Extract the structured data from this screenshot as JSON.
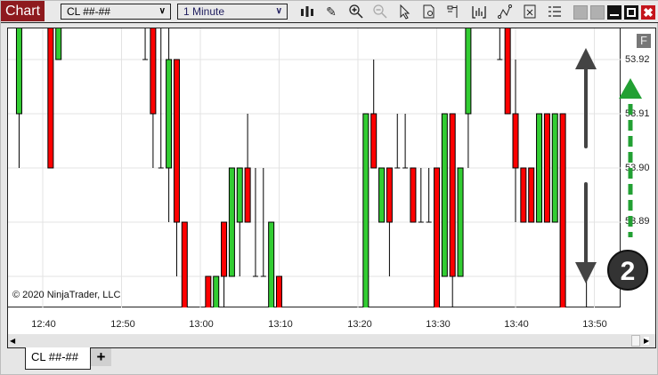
{
  "toolbar": {
    "brand": "Chart",
    "instrument": "CL ##-##",
    "interval": "1 Minute",
    "icons": [
      "bar-type-icon",
      "draw-pencil-icon",
      "zoom-in-icon",
      "zoom-out-icon",
      "pointer-icon",
      "data-box-icon",
      "properties-icon",
      "indicators-icon",
      "strategies-icon",
      "templates-icon",
      "list-icon"
    ]
  },
  "window": {
    "close_color": "#c4161c"
  },
  "chart": {
    "copyright": "© 2020 NinjaTrader, LLC",
    "f_button": "F",
    "badge": "2",
    "price_labels": [
      "53.92",
      "53.91",
      "53.90",
      "53.89"
    ],
    "time_labels": [
      "12:40",
      "12:50",
      "13:00",
      "13:10",
      "13:20",
      "13:30",
      "13:40",
      "13:50"
    ],
    "up_color": "#32cd32",
    "down_color": "#ff0000"
  },
  "chart_data": {
    "type": "candlestick",
    "x_label": "",
    "y_label": "",
    "ylim": [
      53.8744,
      53.9257
    ],
    "grid": true,
    "candles": [
      [
        "12:37",
        53.91,
        53.93,
        53.9,
        53.93
      ],
      [
        "12:41",
        53.93,
        53.93,
        53.9,
        53.9
      ],
      [
        "12:42",
        53.92,
        53.93,
        53.92,
        53.93
      ],
      [
        "12:53",
        53.92,
        53.93,
        53.92,
        53.92
      ],
      [
        "12:54",
        53.93,
        53.93,
        53.9,
        53.91
      ],
      [
        "12:55",
        53.9,
        53.93,
        53.9,
        53.9
      ],
      [
        "12:56",
        53.9,
        53.93,
        53.89,
        53.92
      ],
      [
        "12:57",
        53.92,
        53.92,
        53.88,
        53.89
      ],
      [
        "12:58",
        53.89,
        53.89,
        53.87,
        53.87
      ],
      [
        "13:01",
        53.88,
        53.88,
        53.87,
        53.87
      ],
      [
        "13:02",
        53.87,
        53.88,
        53.87,
        53.88
      ],
      [
        "13:03",
        53.89,
        53.89,
        53.87,
        53.88
      ],
      [
        "13:04",
        53.88,
        53.9,
        53.88,
        53.9
      ],
      [
        "13:05",
        53.89,
        53.9,
        53.88,
        53.9
      ],
      [
        "13:06",
        53.9,
        53.91,
        53.89,
        53.89
      ],
      [
        "13:07",
        53.88,
        53.9,
        53.88,
        53.88
      ],
      [
        "13:08",
        53.88,
        53.9,
        53.88,
        53.88
      ],
      [
        "13:09",
        53.87,
        53.89,
        53.87,
        53.89
      ],
      [
        "13:10",
        53.88,
        53.88,
        53.87,
        53.87
      ],
      [
        "13:21",
        53.87,
        53.91,
        53.87,
        53.91
      ],
      [
        "13:22",
        53.91,
        53.92,
        53.9,
        53.9
      ],
      [
        "13:23",
        53.89,
        53.9,
        53.89,
        53.9
      ],
      [
        "13:24",
        53.9,
        53.9,
        53.88,
        53.89
      ],
      [
        "13:25",
        53.9,
        53.91,
        53.9,
        53.9
      ],
      [
        "13:26",
        53.9,
        53.91,
        53.9,
        53.9
      ],
      [
        "13:27",
        53.9,
        53.9,
        53.89,
        53.89
      ],
      [
        "13:28",
        53.89,
        53.9,
        53.89,
        53.89
      ],
      [
        "13:29",
        53.89,
        53.9,
        53.89,
        53.89
      ],
      [
        "13:30",
        53.9,
        53.9,
        53.87,
        53.87
      ],
      [
        "13:31",
        53.88,
        53.91,
        53.88,
        53.91
      ],
      [
        "13:32",
        53.91,
        53.91,
        53.87,
        53.88
      ],
      [
        "13:33",
        53.88,
        53.9,
        53.88,
        53.9
      ],
      [
        "13:34",
        53.91,
        53.93,
        53.9,
        53.93
      ],
      [
        "13:38",
        53.92,
        53.93,
        53.92,
        53.92
      ],
      [
        "13:39",
        53.93,
        53.93,
        53.91,
        53.91
      ],
      [
        "13:40",
        53.91,
        53.92,
        53.89,
        53.9
      ],
      [
        "13:41",
        53.9,
        53.9,
        53.89,
        53.89
      ],
      [
        "13:42",
        53.9,
        53.9,
        53.89,
        53.89
      ],
      [
        "13:43",
        53.89,
        53.91,
        53.89,
        53.91
      ],
      [
        "13:44",
        53.91,
        53.91,
        53.89,
        53.89
      ],
      [
        "13:45",
        53.89,
        53.91,
        53.89,
        53.91
      ],
      [
        "13:46",
        53.91,
        53.91,
        53.87,
        53.87
      ],
      [
        "13:49",
        53.88,
        53.88,
        53.87,
        53.88
      ]
    ]
  },
  "tabs": [
    {
      "label": "CL ##-##"
    }
  ],
  "add_tab": "+"
}
